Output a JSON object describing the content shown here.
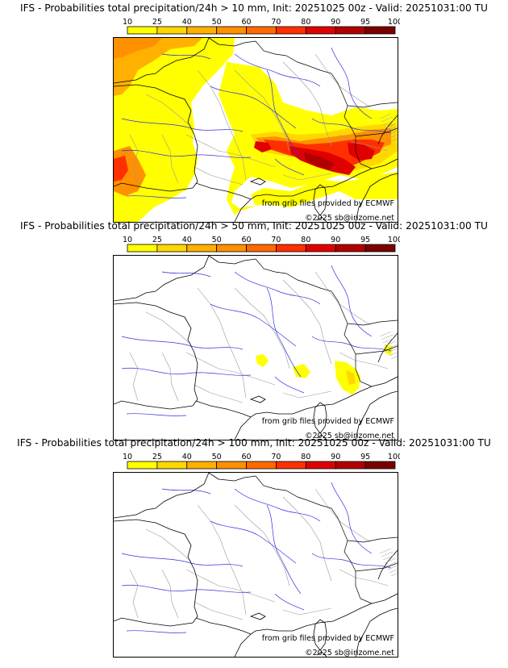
{
  "panels": [
    {
      "title": "IFS - Probabilities total precipitation/24h > 10 mm, Init: 20251025 00z - Valid: 20251031:00 TU",
      "threshold_mm": 10
    },
    {
      "title": "IFS - Probabilities total precipitation/24h > 50 mm, Init: 20251025 00z - Valid: 20251031:00 TU",
      "threshold_mm": 50
    },
    {
      "title": "IFS - Probabilities total precipitation/24h > 100 mm, Init: 20251025 00z - Valid: 20251031:00 TU",
      "threshold_mm": 100
    }
  ],
  "colorbar": {
    "ticks": [
      "10",
      "25",
      "40",
      "50",
      "60",
      "70",
      "80",
      "90",
      "95",
      "100"
    ],
    "colors": [
      "#ffff00",
      "#ffd700",
      "#ffb000",
      "#ff9000",
      "#ff6a00",
      "#ff3000",
      "#e00000",
      "#b00000",
      "#7a0000"
    ]
  },
  "credits": {
    "source": "from grib files provided by ECMWF",
    "copyright": "©2025 sb@irizome.net"
  },
  "colors": {
    "land_border": "#000000",
    "admin_border": "#9a9a9a",
    "rivers": "#3030e0"
  }
}
